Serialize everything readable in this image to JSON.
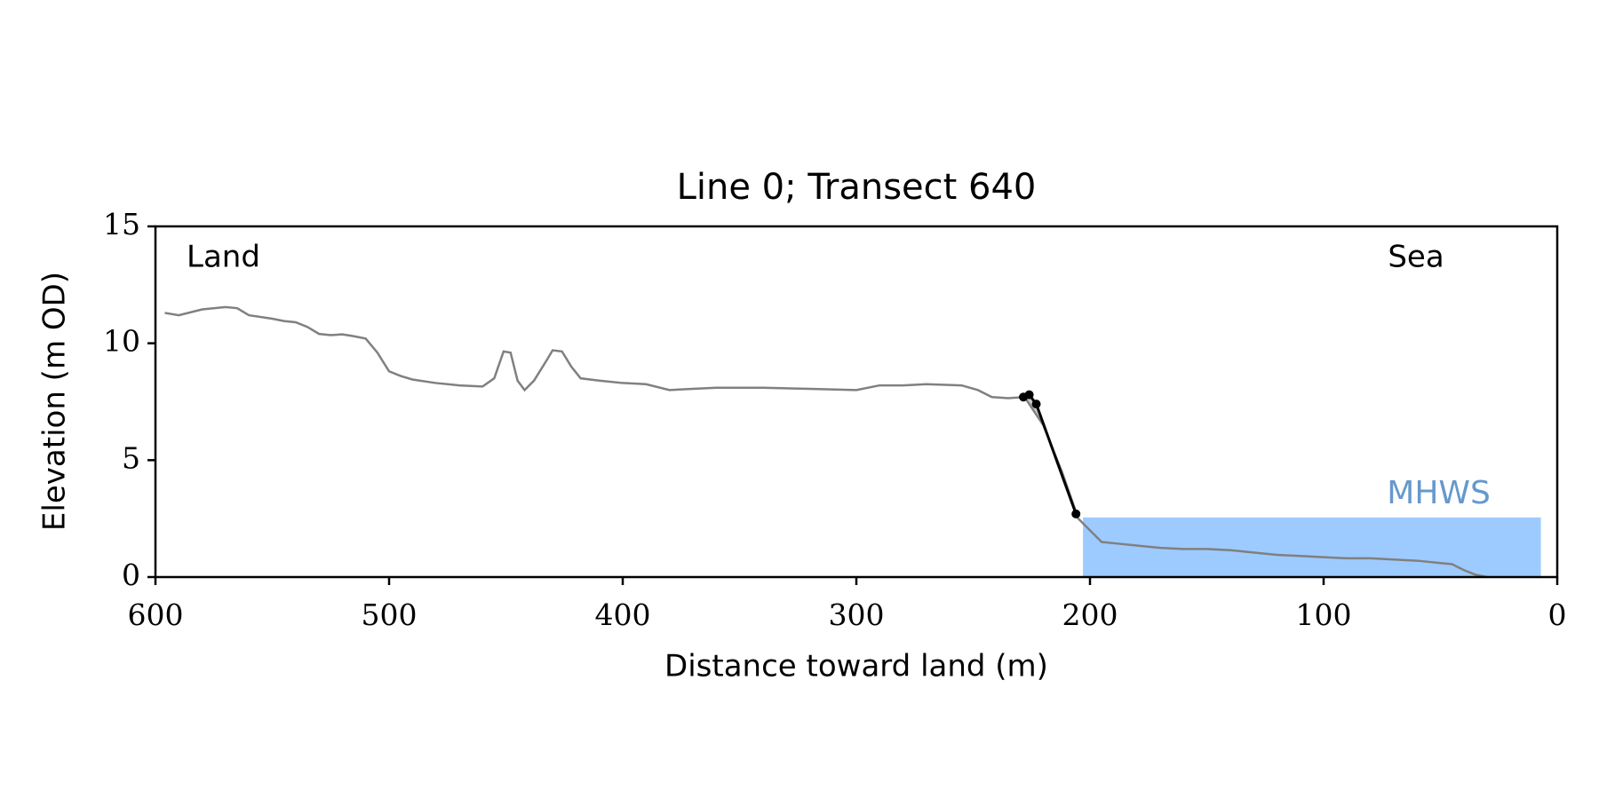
{
  "chart_data": {
    "type": "line",
    "title": "Line 0; Transect 640",
    "xlabel": "Distance toward land (m)",
    "ylabel": "Elevation (m OD)",
    "xlim": [
      600,
      0
    ],
    "ylim": [
      0,
      15
    ],
    "xticks": [
      600,
      500,
      400,
      300,
      200,
      100,
      0
    ],
    "yticks": [
      0,
      5,
      10,
      15
    ],
    "annotations": [
      "Land",
      "Sea"
    ],
    "mhws": {
      "label": "MHWS",
      "level": 2.55,
      "x": [
        203,
        7
      ],
      "color": "#9ecbff",
      "label_color": "#6699cc"
    },
    "series": [
      {
        "color": "#808080",
        "x": [
          596,
          590,
          580,
          570,
          565,
          560,
          550,
          545,
          540,
          535,
          530,
          525,
          520,
          515,
          510,
          505,
          500,
          495,
          490,
          480,
          470,
          460,
          455,
          451,
          448,
          445,
          442,
          438,
          433,
          430,
          426,
          422,
          418,
          410,
          400,
          390,
          380,
          370,
          360,
          350,
          340,
          320,
          300,
          290,
          280,
          270,
          255,
          248,
          242,
          235,
          228,
          220,
          212,
          205,
          200,
          195,
          190,
          180,
          170,
          160,
          150,
          140,
          130,
          120,
          110,
          100,
          90,
          80,
          70,
          60,
          50,
          45,
          40,
          35,
          30
        ],
        "values": [
          11.3,
          11.2,
          11.45,
          11.55,
          11.5,
          11.2,
          11.05,
          10.95,
          10.9,
          10.7,
          10.4,
          10.35,
          10.38,
          10.3,
          10.2,
          9.6,
          8.8,
          8.6,
          8.45,
          8.3,
          8.2,
          8.15,
          8.5,
          9.65,
          9.6,
          8.4,
          8.0,
          8.4,
          9.2,
          9.7,
          9.65,
          9.0,
          8.5,
          8.4,
          8.3,
          8.25,
          8.0,
          8.05,
          8.1,
          8.1,
          8.1,
          8.05,
          8.0,
          8.2,
          8.2,
          8.25,
          8.2,
          8.0,
          7.7,
          7.65,
          7.7,
          6.5,
          4.5,
          2.5,
          2.0,
          1.5,
          1.45,
          1.35,
          1.25,
          1.2,
          1.2,
          1.15,
          1.05,
          0.95,
          0.9,
          0.85,
          0.8,
          0.8,
          0.75,
          0.7,
          0.6,
          0.55,
          0.3,
          0.1,
          0.0
        ]
      },
      {
        "color": "#000000",
        "markers": true,
        "x": [
          228.5,
          226,
          223,
          206
        ],
        "values": [
          7.7,
          7.8,
          7.4,
          2.7
        ]
      }
    ]
  }
}
